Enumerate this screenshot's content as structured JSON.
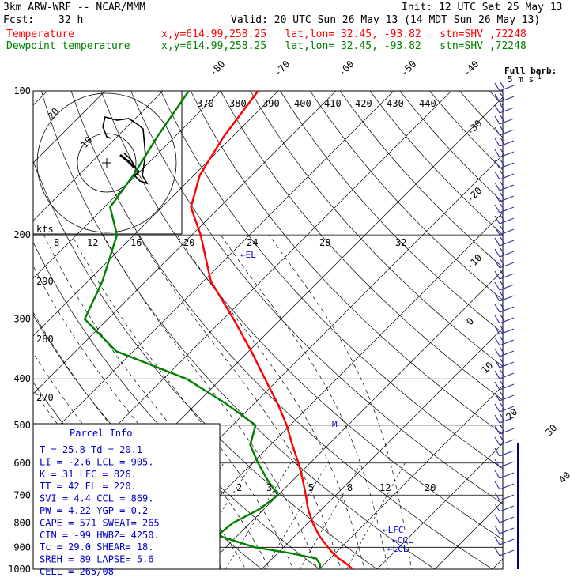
{
  "header": {
    "model": "3km ARW-WRF -- NCAR/MMM",
    "init": "Init: 12 UTC Sat 25 May 13",
    "fcst_label": "Fcst:",
    "fcst_value": "32 h",
    "valid": "Valid: 20 UTC Sun 26 May 13 (14 MDT Sun 26 May 13)",
    "temp_label": "Temperature",
    "temp_loc": "x,y=614.99,258.25   lat,lon= 32.45, -93.82   stn=SHV ,72248",
    "dew_label": "Dewpoint temperature",
    "dew_loc": "x,y=614.99,258.25   lat,lon= 32.45, -93.82   stn=SHV ,72248"
  },
  "colors": {
    "temperature": "#ff0000",
    "dewpoint": "#008000",
    "parcel_text": "#0000cc",
    "barbs": "#3333aa"
  },
  "chart_data": {
    "type": "line",
    "title": "",
    "pressure_levels": [
      "100",
      "200",
      "300",
      "400",
      "500",
      "600",
      "700",
      "800",
      "900",
      "1000"
    ],
    "temperature_ticks": [
      "-80",
      "-70",
      "-60",
      "-50",
      "-40",
      "-30",
      "-20",
      "-10",
      "0",
      "10",
      "20",
      "30",
      "40"
    ],
    "theta_labels": [
      "370",
      "380",
      "390",
      "400",
      "410",
      "420",
      "430",
      "440",
      "290",
      "280",
      "270"
    ],
    "mixing_ratio_labels": [
      "2",
      "3",
      "5",
      "8",
      "12",
      "20"
    ],
    "series": [
      {
        "name": "Temperature",
        "p": [
          1000,
          975,
          950,
          925,
          900,
          850,
          800,
          750,
          700,
          650,
          600,
          550,
          500,
          450,
          400,
          350,
          300,
          250,
          200,
          175,
          150,
          125,
          100
        ],
        "t": [
          25.8,
          23.8,
          21.5,
          19.5,
          17.7,
          14.1,
          10.8,
          7.7,
          4.8,
          1.6,
          -2.0,
          -6.2,
          -10.6,
          -16.0,
          -22.4,
          -29.6,
          -38.2,
          -48.7,
          -58.5,
          -65.0,
          -69.0,
          -71.5,
          -73.5
        ]
      },
      {
        "name": "Dewpoint temperature",
        "p": [
          1000,
          975,
          950,
          925,
          900,
          850,
          800,
          750,
          700,
          650,
          600,
          550,
          500,
          450,
          400,
          350,
          300,
          250,
          200,
          175,
          150,
          125,
          100
        ],
        "t": [
          20.1,
          19.2,
          17.6,
          12.0,
          5.0,
          -3.5,
          -3.0,
          -0.8,
          0.0,
          -4.5,
          -9.0,
          -13.5,
          -16.0,
          -25.0,
          -36.0,
          -53.0,
          -64.0,
          -67.5,
          -73.0,
          -79.0,
          -80.5,
          -83.0,
          -85.5
        ]
      }
    ],
    "levels": [
      {
        "label": "EL",
        "p": 220
      },
      {
        "label": "LFC",
        "p": 826
      },
      {
        "label": "CCL",
        "p": 869
      },
      {
        "label": "LCL",
        "p": 905
      }
    ]
  },
  "hodograph": {
    "kts_label": "kts",
    "speed_labels": [
      "8",
      "12",
      "16",
      "20",
      "24",
      "28",
      "32"
    ],
    "ring_labels": [
      "20",
      "10"
    ]
  },
  "parcel": {
    "title": "Parcel Info",
    "rows": [
      "T  =    25.8  Td =  20.1",
      "LI =    -2.6  LCL =  905.",
      "K  =      31  LFC =  826.",
      "TT =      42  EL  =  220.",
      "SVI =    4.4  CCL =  869.",
      "PW =   4.22  YGP =   0.2",
      "CAPE =   571  SWEAT=  265",
      "CIN =    -99  HWBZ= 4250.",
      "Tc =   29.0  SHEAR=   18.",
      "SREH =    89  LAPSE=   5.6",
      "CELL = 265/08"
    ]
  },
  "legend": {
    "full_barb_title": "Full barb:",
    "full_barb_value": "5 m s",
    "full_barb_exp": "-1"
  },
  "markers": {
    "lfc": "LFC",
    "ccl": "CCL",
    "lcl": "LCL",
    "el": "EL"
  }
}
